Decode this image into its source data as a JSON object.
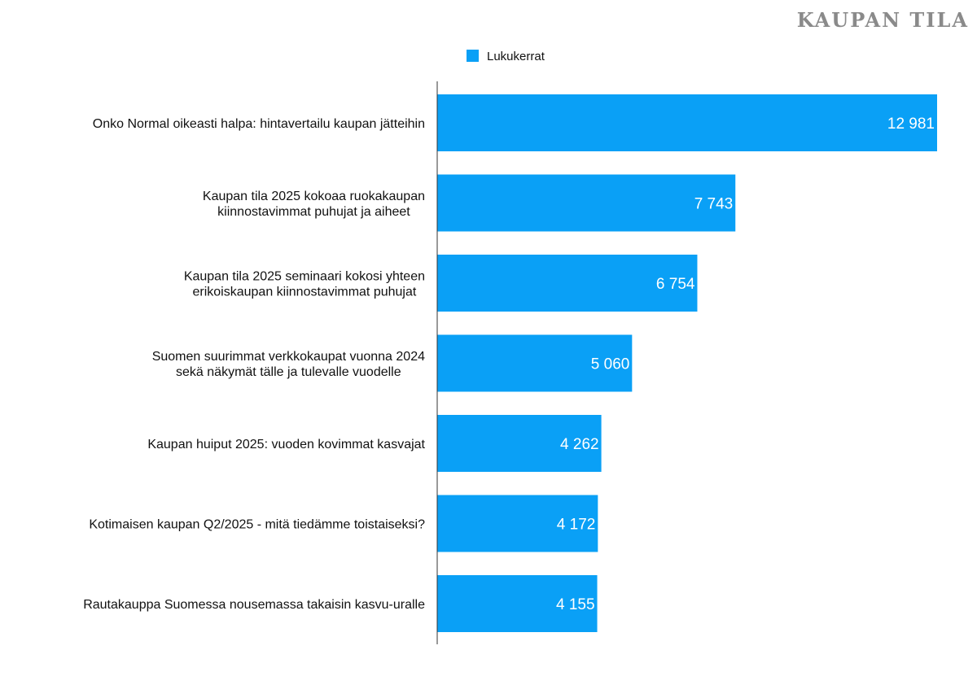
{
  "brand": {
    "title": "KAUPAN TILA"
  },
  "chart_data": {
    "type": "bar",
    "orientation": "horizontal",
    "title": "",
    "xlabel": "",
    "ylabel": "",
    "xlim": [
      0,
      13000
    ],
    "grid": false,
    "legend_position": "top-center",
    "color": "#0aa0f6",
    "categories": [
      [
        "Onko Normal oikeasti halpa: hintavertailu kaupan jätteihin"
      ],
      [
        "Kaupan tila 2025 kokoaa ruokakaupan",
        "kiinnostavimmat puhujat ja aiheet"
      ],
      [
        "Kaupan tila 2025 seminaari kokosi yhteen",
        "erikoiskaupan kiinnostavimmat puhujat"
      ],
      [
        "Suomen suurimmat verkkokaupat vuonna 2024",
        "sekä näkymät tälle ja tulevalle vuodelle"
      ],
      [
        "Kaupan huiput 2025: vuoden kovimmat kasvajat"
      ],
      [
        "Kotimaisen kaupan Q2/2025 - mitä tiedämme toistaiseksi?"
      ],
      [
        "Rautakauppa Suomessa nousemassa takaisin kasvu-uralle"
      ]
    ],
    "series": [
      {
        "name": "Lukukerrat",
        "values": [
          12981,
          7743,
          6754,
          5060,
          4262,
          4172,
          4155
        ],
        "value_labels": [
          "12 981",
          "7 743",
          "6 754",
          "5 060",
          "4 262",
          "4 172",
          "4 155"
        ]
      }
    ]
  }
}
